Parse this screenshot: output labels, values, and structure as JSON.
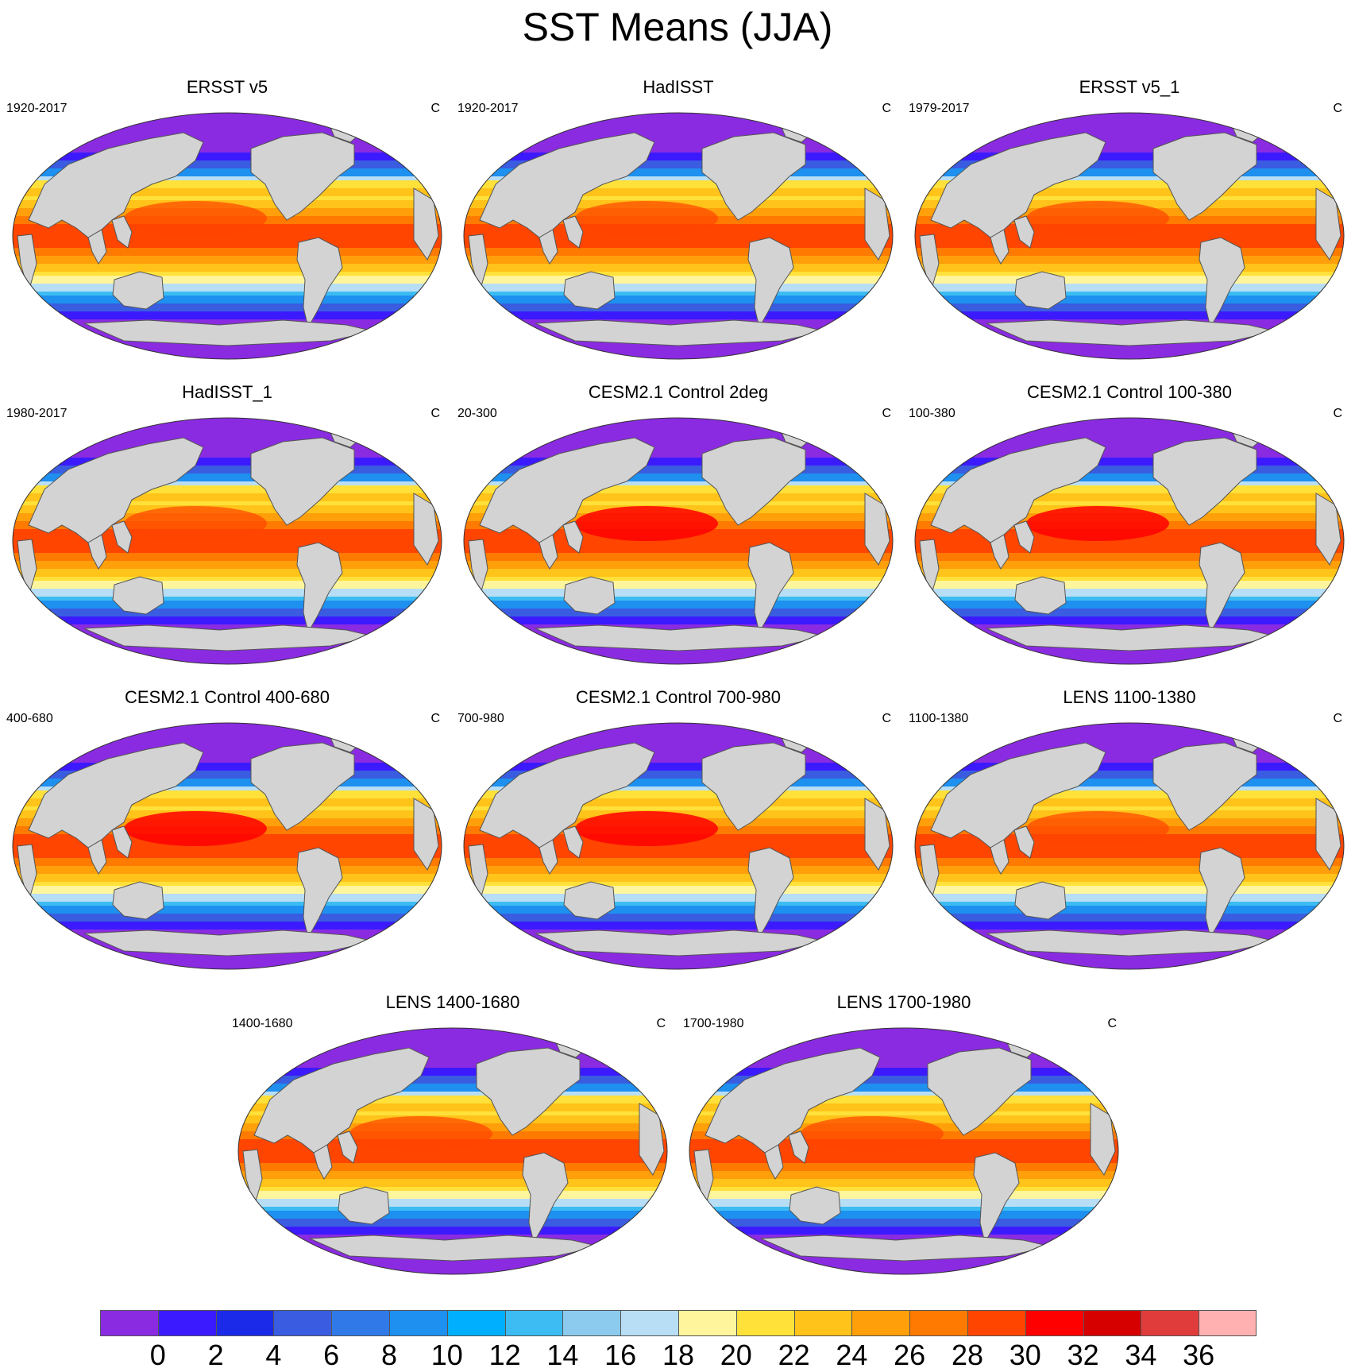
{
  "title": "SST Means (JJA)",
  "unit": "C",
  "panels": [
    {
      "title": "ERSST v5",
      "period": "1920-2017",
      "peak": 0
    },
    {
      "title": "HadISST",
      "period": "1920-2017",
      "peak": 0
    },
    {
      "title": "ERSST v5_1",
      "period": "1979-2017",
      "peak": 0
    },
    {
      "title": "HadISST_1",
      "period": "1980-2017",
      "peak": 0
    },
    {
      "title": "CESM2.1 Control 2deg",
      "period": "20-300",
      "peak": 1
    },
    {
      "title": "CESM2.1 Control 100-380",
      "period": "100-380",
      "peak": 1
    },
    {
      "title": "CESM2.1 Control 400-680",
      "period": "400-680",
      "peak": 1
    },
    {
      "title": "CESM2.1 Control 700-980",
      "period": "700-980",
      "peak": 1
    },
    {
      "title": "LENS 1100-1380",
      "period": "1100-1380",
      "peak": 0
    },
    {
      "title": "LENS 1400-1680",
      "period": "1400-1680",
      "peak": 0
    },
    {
      "title": "LENS 1700-1980",
      "period": "1700-1980",
      "peak": 0
    }
  ],
  "colorbar": {
    "labels": [
      "0",
      "2",
      "4",
      "6",
      "8",
      "10",
      "12",
      "14",
      "16",
      "18",
      "20",
      "22",
      "24",
      "26",
      "28",
      "30",
      "32",
      "34",
      "36"
    ],
    "colors": [
      "#8a2be2",
      "#3c1aff",
      "#1a2ae8",
      "#3a5ce0",
      "#2f7ae8",
      "#1e90f0",
      "#00b0ff",
      "#3cbcf2",
      "#8ccbee",
      "#b8def5",
      "#fff59c",
      "#ffe13a",
      "#ffc31a",
      "#ff9f0a",
      "#ff7a00",
      "#ff4500",
      "#ff0000",
      "#d60000",
      "#e03c3c",
      "#ffb0b0"
    ]
  },
  "colors": {
    "land": "#d3d3d3",
    "coast": "#555555",
    "missing": "#ffffff"
  }
}
